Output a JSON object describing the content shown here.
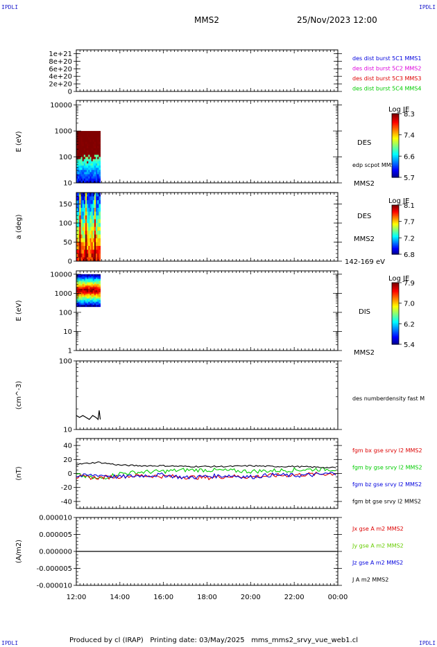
{
  "header": {
    "corner_tl": "IPDLI",
    "corner_tr": "IPDLI",
    "corner_bl": "IPDLI",
    "corner_br": "IPDLI",
    "title": "MMS2",
    "date": "25/Nov/2023 12:00"
  },
  "footer": {
    "text": "Produced by cl (IRAP)   Printing date: 03/May/2025   mms_mms2_srvy_vue_web1.cl"
  },
  "time_axis": {
    "ticks": [
      "12:00",
      "14:00",
      "16:00",
      "18:00",
      "20:00",
      "22:00",
      "00:00"
    ],
    "range_hours": [
      12,
      24
    ]
  },
  "chart_data": [
    {
      "type": "line",
      "panel": "dist-burst",
      "ylabel": "",
      "ylim": [
        0,
        1.1e+21
      ],
      "ytick_labels": [
        "1e+21",
        "8e+20",
        "6e+20",
        "4e+20",
        "2e+20",
        "0"
      ],
      "series": [
        {
          "name": "des dist burst 5C1 MMS1",
          "color": "#0000dd",
          "values": []
        },
        {
          "name": "des dist burst 5C2 MMS2",
          "color": "#dd00dd",
          "values": []
        },
        {
          "name": "des dist burst 5C3 MMS3",
          "color": "#dd0000",
          "values": []
        },
        {
          "name": "des dist burst 5C4 MMS4",
          "color": "#00cc00",
          "values": []
        }
      ],
      "zero_line": "dashed"
    },
    {
      "type": "heatmap",
      "panel": "des-energy",
      "ylabel": "E (eV)",
      "yscale": "log",
      "ylim": [
        10,
        15000
      ],
      "ytick_labels": [
        "10000",
        "1000",
        "100",
        "10"
      ],
      "data_time_range": [
        12.0,
        13.1
      ],
      "data_y_range": [
        10,
        1000
      ],
      "right_labels": [
        "DES",
        "edp scpot MMS2",
        "MMS2"
      ],
      "colorbar": {
        "title": "Log JE",
        "ticks": [
          "8.3",
          "7.4",
          "6.6",
          "5.7"
        ]
      }
    },
    {
      "type": "heatmap",
      "panel": "des-pitch",
      "ylabel": "a (deg)",
      "ylim": [
        0,
        180
      ],
      "ytick_labels": [
        "150",
        "100",
        "50",
        "0"
      ],
      "data_time_range": [
        12.0,
        13.1
      ],
      "right_labels": [
        "DES",
        "MMS2",
        "142-169 eV"
      ],
      "colorbar": {
        "title": "Log JE",
        "ticks": [
          "8.1",
          "7.7",
          "7.2",
          "6.8"
        ]
      }
    },
    {
      "type": "heatmap",
      "panel": "dis-energy",
      "ylabel": "E (eV)",
      "yscale": "log",
      "ylim": [
        1,
        15000
      ],
      "ytick_labels": [
        "10000",
        "1000",
        "100",
        "10",
        "1"
      ],
      "data_time_range": [
        12.0,
        13.1
      ],
      "data_y_range": [
        200,
        10000
      ],
      "right_labels": [
        "DIS",
        "MMS2"
      ],
      "colorbar": {
        "title": "Log JE",
        "ticks": [
          "7.9",
          "7.0",
          "6.2",
          "5.4"
        ]
      }
    },
    {
      "type": "line",
      "panel": "density",
      "ylabel": "(cm^-3)",
      "yscale": "log",
      "ylim": [
        10,
        100
      ],
      "ytick_labels": [
        "100",
        "10"
      ],
      "series": [
        {
          "name": "des numberdensity fast M",
          "color": "#000000",
          "x": [
            12.0,
            12.15,
            12.3,
            12.45,
            12.6,
            12.75,
            12.9,
            13.0,
            13.05,
            13.1
          ],
          "y": [
            16,
            15,
            16,
            15,
            14,
            16,
            15,
            14,
            19,
            14
          ]
        }
      ]
    },
    {
      "type": "line",
      "panel": "fgm",
      "ylabel": "(nT)",
      "ylim": [
        -50,
        50
      ],
      "ytick_labels": [
        "40",
        "20",
        "0",
        "-20",
        "-40"
      ],
      "series": [
        {
          "name": "fgm bx gse srvy l2 MMS2",
          "color": "#dd0000",
          "x": [
            12,
            13,
            14,
            15,
            16,
            17,
            18,
            19,
            20,
            21,
            22,
            23,
            24
          ],
          "y": [
            -5,
            -6,
            -4,
            -3,
            -4,
            -5,
            -6,
            -4,
            -5,
            -3,
            -2,
            -1,
            0
          ]
        },
        {
          "name": "fgm by gse srvy l2 MMS2",
          "color": "#00cc00",
          "x": [
            12,
            13,
            14,
            15,
            16,
            17,
            18,
            19,
            20,
            21,
            22,
            23,
            24
          ],
          "y": [
            -2,
            -8,
            0,
            2,
            3,
            5,
            5,
            4,
            3,
            4,
            5,
            6,
            6
          ]
        },
        {
          "name": "fgm bz gse srvy l2 MMS2",
          "color": "#0000dd",
          "x": [
            12,
            13,
            14,
            15,
            16,
            17,
            18,
            19,
            20,
            21,
            22,
            23,
            24
          ],
          "y": [
            -4,
            -2,
            -5,
            -3,
            -2,
            -6,
            -4,
            -3,
            -5,
            -2,
            -3,
            -2,
            1
          ]
        },
        {
          "name": "fgm bt gse srvy l2 MMS2",
          "color": "#000000",
          "x": [
            12,
            13,
            14,
            15,
            16,
            17,
            18,
            19,
            20,
            21,
            22,
            23,
            24
          ],
          "y": [
            13,
            16,
            12,
            11,
            11,
            10,
            10,
            10,
            11,
            10,
            10,
            9,
            8
          ]
        }
      ]
    },
    {
      "type": "line",
      "panel": "current",
      "ylabel": "(A/m2)",
      "ylim": [
        -1e-05,
        1e-05
      ],
      "ytick_labels": [
        "0.000010",
        "0.000005",
        "0.000000",
        "-0.000005",
        "-0.000010"
      ],
      "series": [
        {
          "name": "Jx gse A m2 MMS2",
          "color": "#dd0000",
          "values": []
        },
        {
          "name": "Jy gse A m2 MMS2",
          "color": "#66cc00",
          "values": []
        },
        {
          "name": "Jz gse A m2 MMS2",
          "color": "#0000dd",
          "values": []
        },
        {
          "name": "J A m2 MMS2",
          "color": "#000000",
          "values": [
            0
          ]
        }
      ]
    }
  ]
}
